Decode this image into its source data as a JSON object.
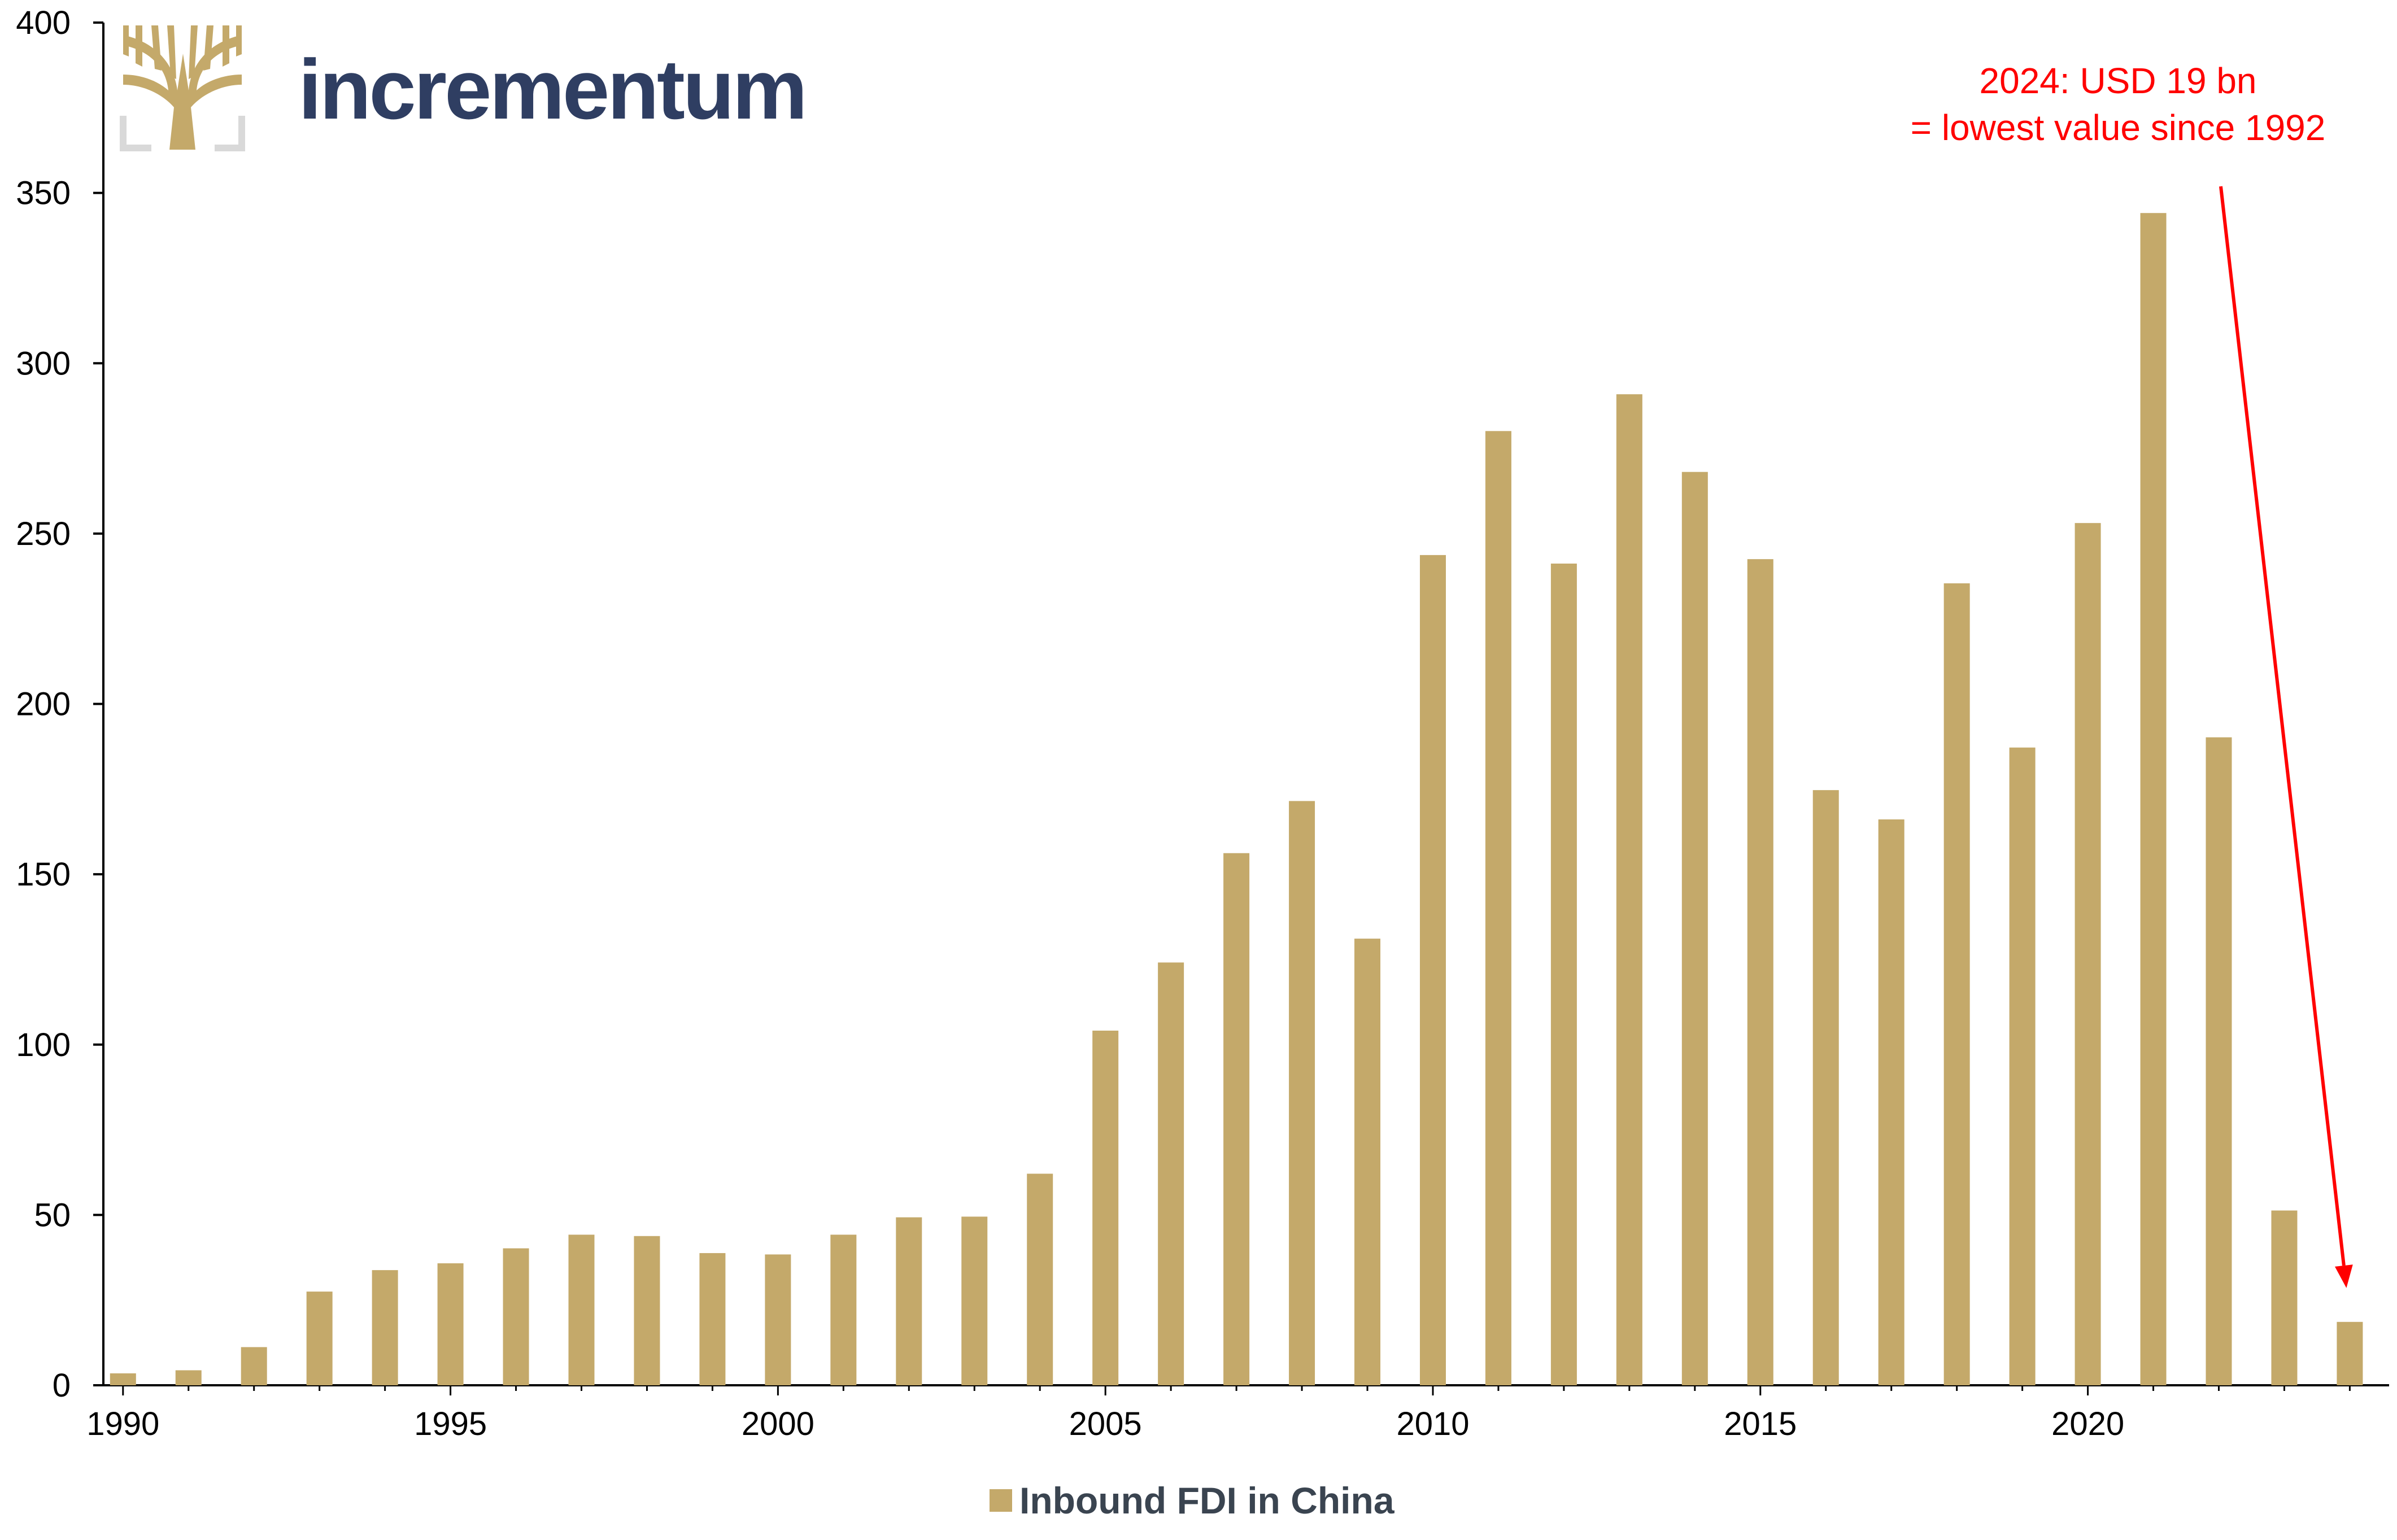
{
  "brand": {
    "name": "incrementum",
    "name_color": "#2f3e62",
    "logo_icon": "tree-icon",
    "logo_color": "#c4a96a",
    "frame_color": "#d9d9d9"
  },
  "chart_data": {
    "type": "bar",
    "x": [
      1990,
      1991,
      1992,
      1993,
      1994,
      1995,
      1996,
      1997,
      1998,
      1999,
      2000,
      2001,
      2002,
      2003,
      2004,
      2005,
      2006,
      2007,
      2008,
      2009,
      2010,
      2011,
      2012,
      2013,
      2014,
      2015,
      2016,
      2017,
      2018,
      2019,
      2020,
      2021,
      2022,
      2023,
      2024
    ],
    "series": [
      {
        "name": "Inbound FDI in China",
        "color": "#c4a96a",
        "values": [
          3.5,
          4.4,
          11.2,
          27.5,
          33.8,
          35.8,
          40.2,
          44.2,
          43.8,
          38.8,
          38.4,
          44.2,
          49.3,
          49.5,
          62.1,
          104.1,
          124.1,
          156.2,
          171.5,
          131.1,
          243.7,
          280.1,
          241.2,
          290.9,
          268.1,
          242.5,
          174.7,
          166.1,
          235.4,
          187.2,
          253.1,
          344.1,
          190.2,
          51.3,
          18.6
        ]
      }
    ],
    "x_ticks": [
      "1990",
      "1995",
      "2000",
      "2005",
      "2010",
      "2015",
      "2020"
    ],
    "x_tick_values": [
      1990,
      1995,
      2000,
      2005,
      2010,
      2015,
      2020
    ],
    "y_ticks": [
      "0",
      "50",
      "100",
      "150",
      "200",
      "250",
      "300",
      "350",
      "400"
    ],
    "ylim": [
      0,
      400
    ],
    "xlim": [
      1989.7,
      2024.6
    ],
    "grid": false,
    "legend": {
      "position": "bottom-center",
      "label": "Inbound FDI in China"
    },
    "annotation": {
      "line1": "2024: USD 19 bn",
      "line2": "= lowest value since 1992",
      "color": "#ff0000",
      "target_x": 2024,
      "target_y": 18.6
    }
  }
}
